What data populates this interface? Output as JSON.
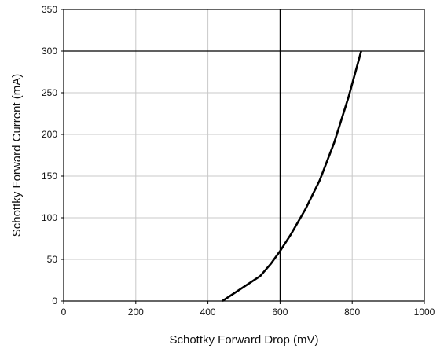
{
  "chart_data": {
    "type": "line",
    "title": "",
    "xlabel": "Schottky Forward Drop (mV)",
    "ylabel": "Schottky Forward Current (mA)",
    "xlim": [
      0,
      1000
    ],
    "ylim": [
      0,
      350
    ],
    "x_ticks": [
      0,
      200,
      400,
      600,
      800,
      1000
    ],
    "y_ticks": [
      0,
      50,
      100,
      150,
      200,
      250,
      300,
      350
    ],
    "x_tick_labels": [
      "0",
      "200",
      "400",
      "600",
      "800",
      "1000"
    ],
    "y_tick_labels": [
      "0",
      "50",
      "100",
      "150",
      "200",
      "250",
      "300",
      "350"
    ],
    "grid": true,
    "emphasized_gridlines": {
      "x": [
        600
      ],
      "y": [
        300
      ]
    },
    "colors": {
      "line": "#000000",
      "grid": "#c8c8c8",
      "grid_emphasis": "#000000",
      "frame": "#000000"
    },
    "series": [
      {
        "x": [
          440,
          545,
          575,
          600,
          630,
          670,
          710,
          750,
          790,
          825
        ],
        "y": [
          0,
          30,
          45,
          60,
          80,
          110,
          145,
          190,
          245,
          300
        ]
      }
    ]
  }
}
